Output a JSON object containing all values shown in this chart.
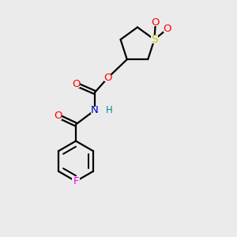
{
  "bg_color": "#ebebeb",
  "atom_colors": {
    "C": "#000000",
    "O": "#ff0000",
    "N": "#0000cc",
    "S": "#cccc00",
    "F": "#ff00ff",
    "H": "#008888"
  },
  "bond_color": "#000000",
  "bond_width": 1.6,
  "figsize": [
    3.0,
    3.0
  ],
  "dpi": 100
}
